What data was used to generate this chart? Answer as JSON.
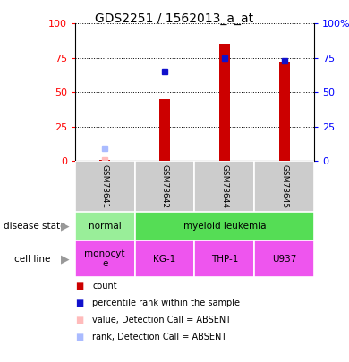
{
  "title": "GDS2251 / 1562013_a_at",
  "samples": [
    "GSM73641",
    "GSM73642",
    "GSM73644",
    "GSM73645"
  ],
  "bar_values": [
    1,
    45,
    85,
    72
  ],
  "bar_color": "#cc0000",
  "rank_values": [
    null,
    65,
    75,
    73
  ],
  "rank_color": "#1111cc",
  "absent_value": [
    1,
    null,
    null,
    null
  ],
  "absent_color": "#ffbbbb",
  "absent_rank": [
    9,
    null,
    null,
    null
  ],
  "absent_rank_color": "#aabbff",
  "ylim": [
    0,
    100
  ],
  "yticks": [
    0,
    25,
    50,
    75,
    100
  ],
  "bar_width": 0.18,
  "disease_regions": [
    {
      "label": "normal",
      "start": 0,
      "end": 1,
      "color": "#99ee99"
    },
    {
      "label": "myeloid leukemia",
      "start": 1,
      "end": 4,
      "color": "#55dd55"
    }
  ],
  "cell_lines": [
    "monocyt\ne",
    "KG-1",
    "THP-1",
    "U937"
  ],
  "cell_line_color": "#ee55ee",
  "legend_items": [
    {
      "label": "count",
      "color": "#cc0000"
    },
    {
      "label": "percentile rank within the sample",
      "color": "#1111cc"
    },
    {
      "label": "value, Detection Call = ABSENT",
      "color": "#ffbbbb"
    },
    {
      "label": "rank, Detection Call = ABSENT",
      "color": "#aabbff"
    }
  ],
  "sample_box_color": "#cccccc",
  "left_label_disease": "disease state",
  "left_label_cell": "cell line",
  "arrow_color": "#999999"
}
